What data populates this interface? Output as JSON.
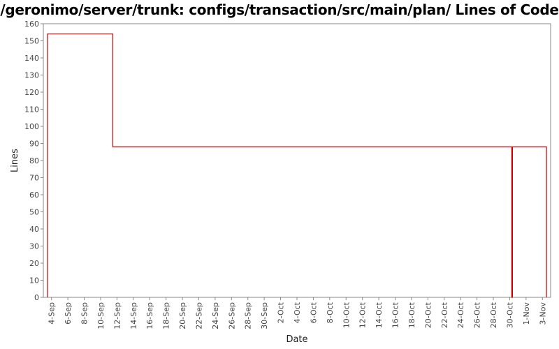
{
  "chart_data": {
    "type": "line",
    "title": "/geronimo/server/trunk: configs/transaction/src/main/plan/ Lines of Code",
    "xlabel": "Date",
    "ylabel": "Lines",
    "ylim": [
      0,
      160
    ],
    "yticks": [
      0,
      10,
      20,
      30,
      40,
      50,
      60,
      70,
      80,
      90,
      100,
      110,
      120,
      130,
      140,
      150,
      160
    ],
    "xlim": [
      "2007-09-03",
      "2007-11-04"
    ],
    "xticks": [
      {
        "date": "2007-09-04",
        "label": "4-Sep"
      },
      {
        "date": "2007-09-06",
        "label": "6-Sep"
      },
      {
        "date": "2007-09-08",
        "label": "8-Sep"
      },
      {
        "date": "2007-09-10",
        "label": "10-Sep"
      },
      {
        "date": "2007-09-12",
        "label": "12-Sep"
      },
      {
        "date": "2007-09-14",
        "label": "14-Sep"
      },
      {
        "date": "2007-09-16",
        "label": "16-Sep"
      },
      {
        "date": "2007-09-18",
        "label": "18-Sep"
      },
      {
        "date": "2007-09-20",
        "label": "20-Sep"
      },
      {
        "date": "2007-09-22",
        "label": "22-Sep"
      },
      {
        "date": "2007-09-24",
        "label": "24-Sep"
      },
      {
        "date": "2007-09-26",
        "label": "26-Sep"
      },
      {
        "date": "2007-09-28",
        "label": "28-Sep"
      },
      {
        "date": "2007-09-30",
        "label": "30-Sep"
      },
      {
        "date": "2007-10-02",
        "label": "2-Oct"
      },
      {
        "date": "2007-10-04",
        "label": "4-Oct"
      },
      {
        "date": "2007-10-06",
        "label": "6-Oct"
      },
      {
        "date": "2007-10-08",
        "label": "8-Oct"
      },
      {
        "date": "2007-10-10",
        "label": "10-Oct"
      },
      {
        "date": "2007-10-12",
        "label": "12-Oct"
      },
      {
        "date": "2007-10-14",
        "label": "14-Oct"
      },
      {
        "date": "2007-10-16",
        "label": "16-Oct"
      },
      {
        "date": "2007-10-18",
        "label": "18-Oct"
      },
      {
        "date": "2007-10-20",
        "label": "20-Oct"
      },
      {
        "date": "2007-10-22",
        "label": "22-Oct"
      },
      {
        "date": "2007-10-24",
        "label": "24-Oct"
      },
      {
        "date": "2007-10-26",
        "label": "26-Oct"
      },
      {
        "date": "2007-10-28",
        "label": "28-Oct"
      },
      {
        "date": "2007-10-30",
        "label": "30-Oct"
      },
      {
        "date": "2007-11-01",
        "label": "1-Nov"
      },
      {
        "date": "2007-11-03",
        "label": "3-Nov"
      }
    ],
    "grid": false,
    "legend": "none",
    "series": [
      {
        "color": "#cc0000",
        "step": true,
        "points": [
          {
            "date": "2007-09-03 12:00",
            "value": 0
          },
          {
            "date": "2007-09-03 12:00",
            "value": 154
          },
          {
            "date": "2007-09-11 12:00",
            "value": 154
          },
          {
            "date": "2007-09-11 12:00",
            "value": 88
          },
          {
            "date": "2007-10-30 06:00",
            "value": 88
          },
          {
            "date": "2007-10-30 06:00",
            "value": 0
          },
          {
            "date": "2007-10-30 08:00",
            "value": 0
          },
          {
            "date": "2007-10-30 08:00",
            "value": 88
          },
          {
            "date": "2007-11-03 12:00",
            "value": 88
          },
          {
            "date": "2007-11-03 12:00",
            "value": 0
          }
        ]
      }
    ]
  }
}
